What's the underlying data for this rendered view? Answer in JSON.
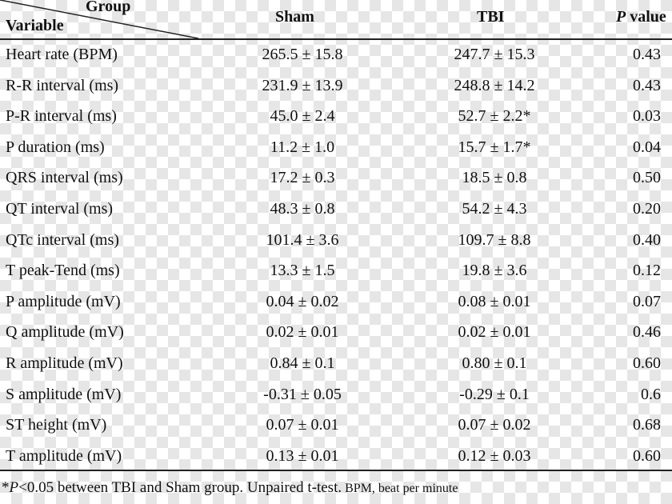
{
  "header": {
    "group": "Group",
    "variable": "Variable",
    "sham": "Sham",
    "tbi": "TBI",
    "p_italic": "P",
    "p_rest": " value"
  },
  "rows": [
    {
      "variable": "Heart rate (BPM)",
      "sham": "265.5 ± 15.8",
      "tbi": "247.7 ± 15.3",
      "p": "0.43"
    },
    {
      "variable": "R-R interval (ms)",
      "sham": "231.9 ± 13.9",
      "tbi": "248.8 ± 14.2",
      "p": "0.43"
    },
    {
      "variable": "P-R interval (ms)",
      "sham": "45.0 ± 2.4",
      "tbi": "52.7 ± 2.2*",
      "p": "0.03"
    },
    {
      "variable": "P duration (ms)",
      "sham": "11.2 ± 1.0",
      "tbi": "15.7 ± 1.7*",
      "p": "0.04"
    },
    {
      "variable": "QRS interval (ms)",
      "sham": "17.2 ± 0.3",
      "tbi": "18.5 ± 0.8",
      "p": "0.50"
    },
    {
      "variable": "QT interval (ms)",
      "sham": "48.3 ± 0.8",
      "tbi": "54.2 ± 4.3",
      "p": "0.20"
    },
    {
      "variable": "QTc interval (ms)",
      "sham": "101.4 ± 3.6",
      "tbi": "109.7 ± 8.8",
      "p": "0.40"
    },
    {
      "variable": "T peak-Tend (ms)",
      "sham": "13.3 ± 1.5",
      "tbi": "19.8 ± 3.6",
      "p": "0.12"
    },
    {
      "variable": "P amplitude (mV)",
      "sham": "0.04 ± 0.02",
      "tbi": "0.08 ± 0.01",
      "p": "0.07"
    },
    {
      "variable": "Q amplitude (mV)",
      "sham": "0.02 ± 0.01",
      "tbi": "0.02 ± 0.01",
      "p": "0.46"
    },
    {
      "variable": "R amplitude (mV)",
      "sham": "0.84 ± 0.1",
      "tbi": "0.80 ± 0.1",
      "p": "0.60"
    },
    {
      "variable": "S amplitude (mV)",
      "sham": "-0.31 ± 0.05",
      "tbi": "-0.29 ± 0.1",
      "p": "0.6"
    },
    {
      "variable": "ST height (mV)",
      "sham": "0.07 ± 0.01",
      "tbi": "0.07 ± 0.02",
      "p": "0.68"
    },
    {
      "variable": "T amplitude (mV)",
      "sham": "0.13 ± 0.01",
      "tbi": "0.12 ± 0.03",
      "p": "0.60"
    }
  ],
  "footnote": {
    "star": "*",
    "p_italic": "P",
    "main": "<0.05 between TBI and Sham group. Unpaired t-test.",
    "abbrev": " BPM, beat per minute"
  }
}
